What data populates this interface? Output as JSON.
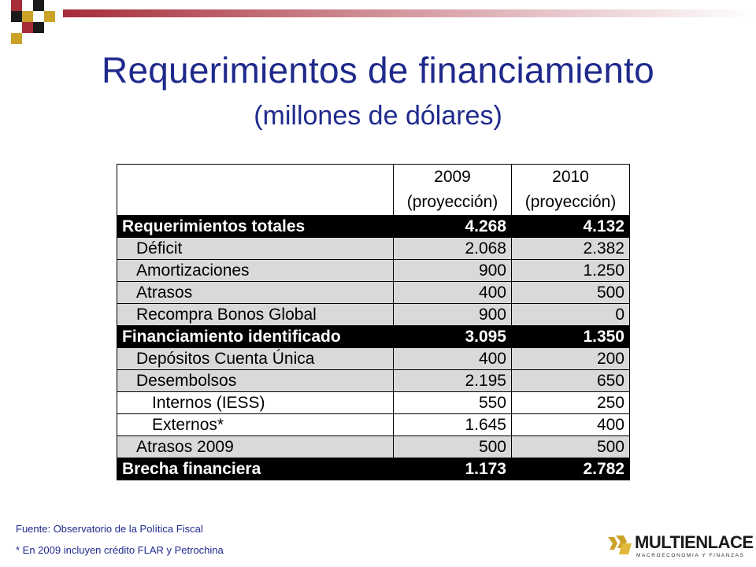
{
  "title": "Requerimientos de financiamiento",
  "subtitle": "(millones de dólares)",
  "colors": {
    "title": "#1f2a8c",
    "accent": "#a62c3a",
    "gold": "#c9a227"
  },
  "table": {
    "headers": [
      {
        "year": "2009",
        "note": "(proyección)"
      },
      {
        "year": "2010",
        "note": "(proyección)"
      }
    ],
    "rows": [
      {
        "style": "sec",
        "label": "Requerimientos totales",
        "v2009": "4.268",
        "v2010": "4.132"
      },
      {
        "style": "sub",
        "label": "Déficit",
        "v2009": "2.068",
        "v2010": "2.382"
      },
      {
        "style": "sub",
        "label": "Amortizaciones",
        "v2009": "900",
        "v2010": "1.250"
      },
      {
        "style": "sub",
        "label": "Atrasos",
        "v2009": "400",
        "v2010": "500"
      },
      {
        "style": "sub",
        "label": "Recompra Bonos Global",
        "v2009": "900",
        "v2010": "0"
      },
      {
        "style": "sec",
        "label": "Financiamiento identificado",
        "v2009": "3.095",
        "v2010": "1.350"
      },
      {
        "style": "sub",
        "label": "Depósitos Cuenta Única",
        "v2009": "400",
        "v2010": "200"
      },
      {
        "style": "sub",
        "label": "Desembolsos",
        "v2009": "2.195",
        "v2010": "650"
      },
      {
        "style": "sub2",
        "label": "Internos (IESS)",
        "v2009": "550",
        "v2010": "250"
      },
      {
        "style": "sub2",
        "label": "Externos*",
        "v2009": "1.645",
        "v2010": "400"
      },
      {
        "style": "sub",
        "label": "Atrasos 2009",
        "v2009": "500",
        "v2010": "500"
      },
      {
        "style": "sec",
        "label": "Brecha financiera",
        "v2009": "1.173",
        "v2010": "2.782"
      }
    ]
  },
  "footnotes": {
    "source": "Fuente: Observatorio de la Política Fiscal",
    "note": "* En 2009 incluyen crédito FLAR y Petrochina"
  },
  "logo": {
    "name": "MULTIENLACE",
    "tagline": "MACROECONOMIA Y FINANZAS",
    "icon": "multienlace-logo-icon"
  }
}
